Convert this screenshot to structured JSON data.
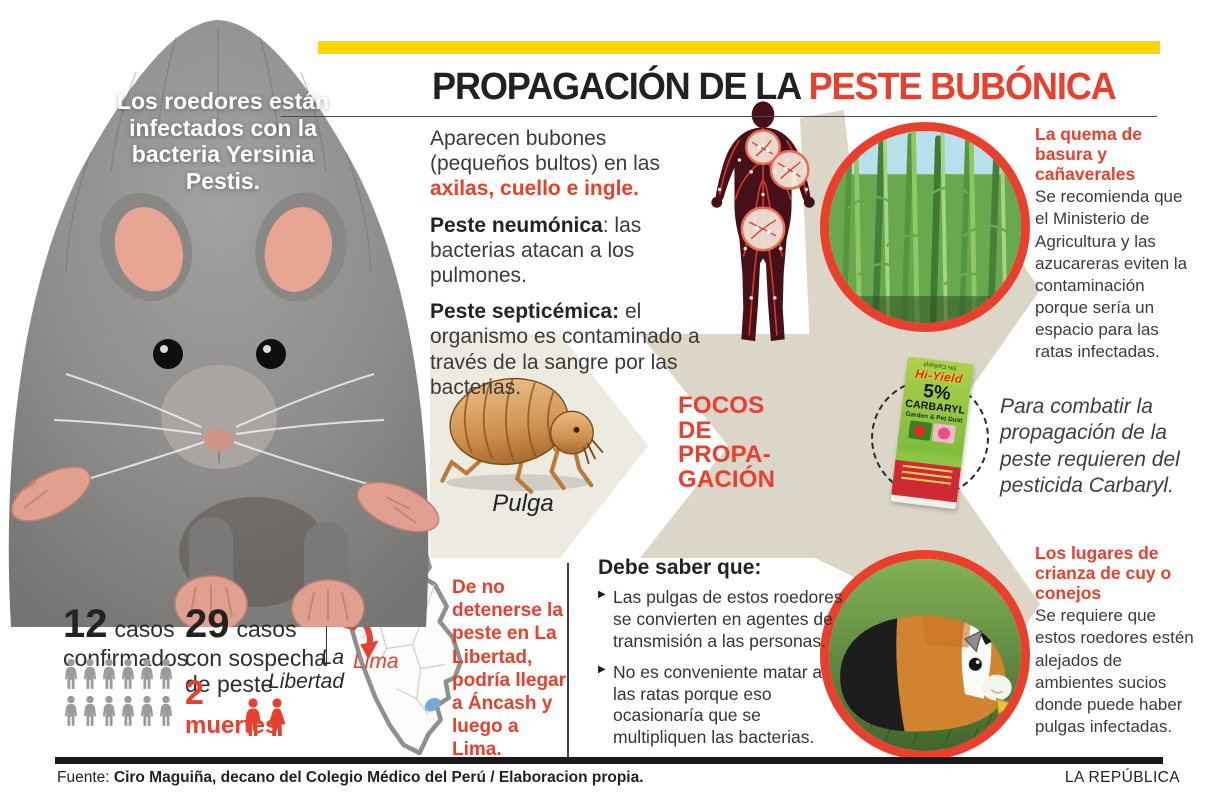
{
  "title": {
    "prefix": "PROPAGACIÓN DE LA ",
    "highlight": "PESTE BUBÓNICA"
  },
  "rat_note": "Los roedores están infectados con la bacteria Yersinia Pestis.",
  "symptoms": {
    "p1_start": "Aparecen bubones (pequeños bultos) en las ",
    "p1_red": "axilas, cuello e ingle.",
    "p2_bold": "Peste neumónica",
    "p2_rest": ": las bacterias atacan a los pulmones.",
    "p3_bold": "Peste septicémica:",
    "p3_rest": " el organismo es contaminado a través de la sangre por las bacterias."
  },
  "focos": {
    "lines": [
      "FOCOS",
      "DE",
      "PROPA-",
      "GACIÓN"
    ]
  },
  "flea_caption": "Pulga",
  "burning": {
    "heading": "La quema de basura y cañaverales",
    "body": "Se recomienda que el Ministerio de Agricultura y las azucareras eviten la contaminación porque sería un espacio para las ratas infectadas."
  },
  "pesticide": {
    "note": "Para combatir la propagación de la peste requieren del pesticida Carbaryl.",
    "bag": {
      "top_flipped": "5% Carbaryl",
      "brand": "Hi-Yield",
      "pct": "5%",
      "name": "CARBARYL",
      "sub": "Garden & Pet Dust"
    }
  },
  "cuy": {
    "heading": "Los lugares de crianza de cuy o conejos",
    "body": "Se requiere que estos roedores estén alejados de ambientes sucios donde puede haber pulgas infectadas."
  },
  "know": {
    "heading": "Debe saber que:",
    "bullets": [
      "Las pulgas de estos roedores se convierten en agentes de transmisión a las personas.",
      "No es conveniente matar a las ratas porque eso ocasionaría que se multipliquen las bacterias."
    ]
  },
  "map": {
    "region_label": "La Libertad",
    "city_label": "Lima",
    "warning": "De no detenerse la peste en La Libertad, podría llegar a Áncash y luego a Lima."
  },
  "stats": {
    "confirmed": {
      "value": "12",
      "label1": "casos",
      "label2": "confirmados",
      "count": 12
    },
    "suspected": {
      "value": "29",
      "label1": "casos",
      "label2": "con sospecha",
      "label3": "de peste"
    },
    "deaths": {
      "value": "2",
      "label": "muertes",
      "count": 2
    }
  },
  "footer": {
    "source_label": "Fuente: ",
    "source_bold": "Ciro Maguiña, decano del Colegio Médico del Perú / Elaboracion propia.",
    "brand": "LA REPÚBLICA"
  },
  "colors": {
    "red": "#e8402d",
    "yellow": "#ffd600",
    "beige": "#dcd6c8",
    "beige_light": "#edeae2",
    "map_blue": "#74a8d6",
    "person_gray": "#9b9b9b"
  }
}
